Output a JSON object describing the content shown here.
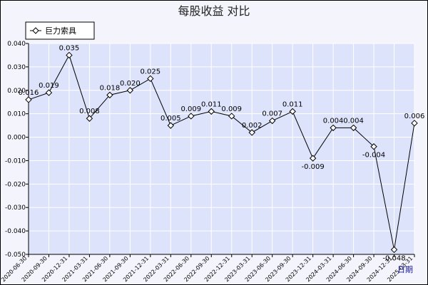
{
  "chart_data": {
    "type": "line",
    "title": "每股收益  对比",
    "xlabel": "",
    "ylabel": "",
    "x_unit_label": "日期",
    "ylim": [
      -0.05,
      0.04
    ],
    "yticks": [
      -0.05,
      -0.04,
      -0.03,
      -0.02,
      -0.01,
      0.0,
      0.01,
      0.02,
      0.03,
      0.04
    ],
    "grid": true,
    "legend": "top-left",
    "categories": [
      "2020-06-30",
      "2020-09-30",
      "2020-12-31",
      "2021-03-31",
      "2021-06-30",
      "2021-09-30",
      "2021-12-31",
      "2022-03-31",
      "2022-06-30",
      "2022-09-30",
      "2022-12-31",
      "2023-03-31",
      "2023-06-30",
      "2023-09-30",
      "2023-12-31",
      "2024-03-31",
      "2024-06-30",
      "2024-09-30",
      "2024-12-31",
      "2025-03-31"
    ],
    "series": [
      {
        "name": "巨力索具",
        "color": "#000000",
        "values": [
          0.016,
          0.019,
          0.035,
          0.008,
          0.018,
          0.02,
          0.025,
          0.005,
          0.009,
          0.011,
          0.009,
          0.002,
          0.007,
          0.011,
          -0.009,
          0.004,
          0.004,
          -0.004,
          -0.048,
          0.006
        ],
        "labels": [
          "0.016",
          "0.019",
          "0.035",
          "0.008",
          "0.018",
          "0.020",
          "0.025",
          "0.005",
          "0.009",
          "0.011",
          "0.009",
          "0.002",
          "0.007",
          "0.011",
          "-0.009",
          "0.004",
          "0.004",
          "-0.004",
          "-0.048",
          "0.006"
        ]
      }
    ],
    "colors": {
      "plot_bg": "#dde3fb",
      "grid": "#ffffff",
      "axis": "#000000",
      "unit_label": "#1a1aa0"
    }
  }
}
